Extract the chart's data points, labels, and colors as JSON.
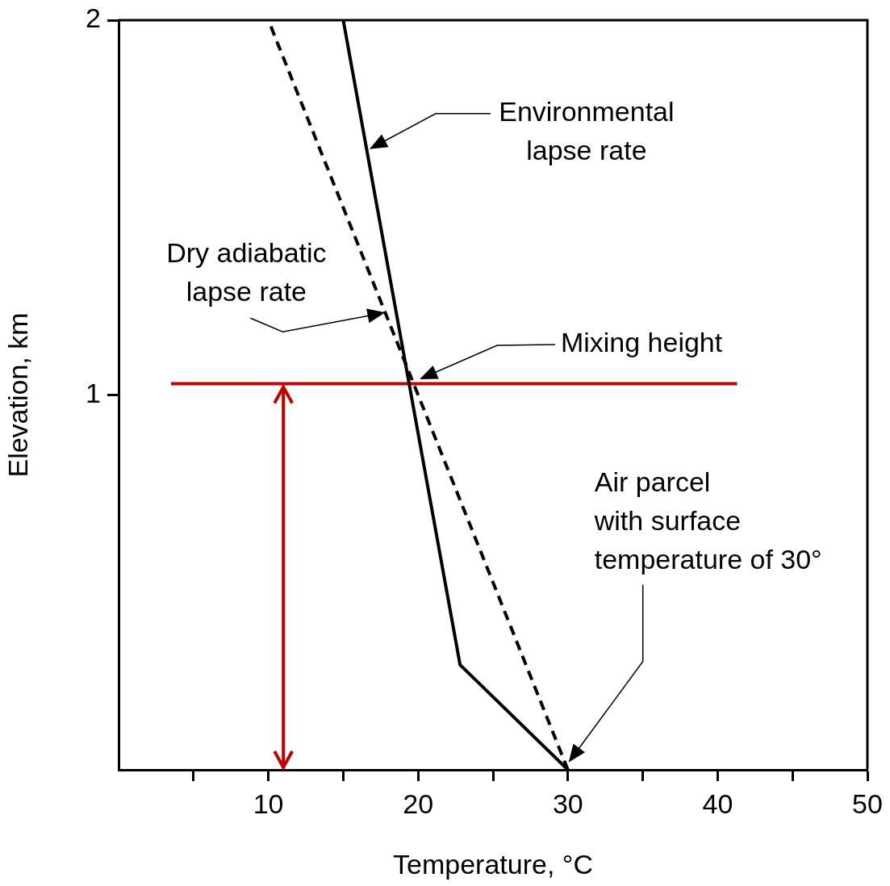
{
  "chart_data": {
    "type": "line",
    "xlabel": "Temperature, °C",
    "ylabel": "Elevation, km",
    "xlim": [
      0,
      50
    ],
    "ylim": [
      0,
      2
    ],
    "xticks": [
      {
        "value": 5,
        "label": null
      },
      10,
      {
        "value": 15,
        "label": null
      },
      20,
      {
        "value": 25,
        "label": null
      },
      30,
      {
        "value": 35,
        "label": null
      },
      40,
      {
        "value": 45,
        "label": null
      },
      50
    ],
    "yticks": [
      1,
      2
    ],
    "grid": false,
    "legend": false,
    "marker": "none",
    "series": [
      {
        "color": "#000000",
        "line_style": "solid",
        "x": [
          30,
          22.8,
          15
        ],
        "values": [
          0,
          0.28,
          2
        ]
      },
      {
        "color": "#000000",
        "line_style": "dashed",
        "x": [
          30,
          10
        ],
        "values": [
          0,
          2
        ]
      },
      {
        "color": "#c00000",
        "line_style": "solid",
        "x": [
          3.5,
          41.3
        ],
        "values": [
          1.03,
          1.03
        ]
      }
    ],
    "annotations": [
      "Environmental lapse rate",
      {
        "text": "Dry adiabatic lapse rate",
        "x": 17.8,
        "y": 1.22
      },
      "Mixing height",
      "Air parcel with surface temperature of 30°"
    ]
  }
}
